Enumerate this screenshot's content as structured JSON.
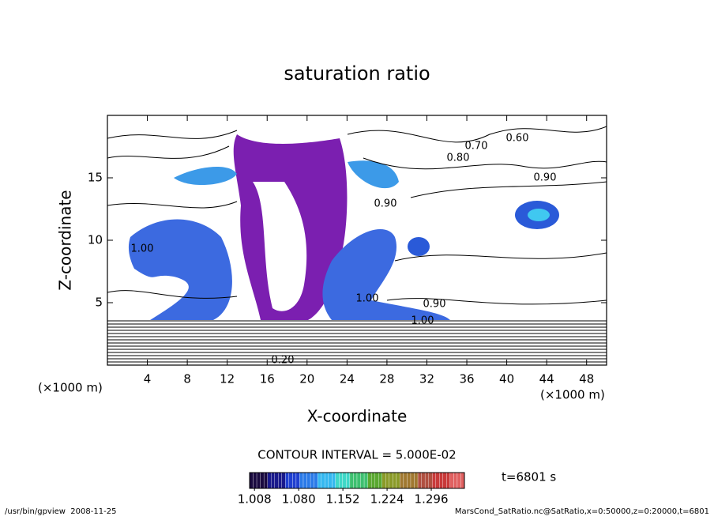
{
  "chart_data": {
    "type": "contour",
    "title": "saturation ratio",
    "x_label": "X-coordinate",
    "y_label": "Z-coordinate",
    "x_unit": "(×1000 m)",
    "y_unit": "(×1000 m)",
    "xlim": [
      0,
      50
    ],
    "ylim": [
      0,
      20
    ],
    "xticks": [
      4,
      8,
      12,
      16,
      20,
      24,
      28,
      32,
      36,
      40,
      44,
      48
    ],
    "yticks": [
      5,
      10,
      15
    ],
    "contour_interval": "CONTOUR INTERVAL = 5.000E-02",
    "contour_labels": [
      "0.80",
      "0.70",
      "0.60",
      "0.90",
      "1.00",
      "1.00",
      "0.90",
      "1.00",
      "0.90",
      "0.20"
    ],
    "colorbar": {
      "lim": [
        1.0,
        1.35
      ],
      "ticks": [
        {
          "value": 1.008,
          "label": "1.008"
        },
        {
          "value": 1.08,
          "label": "1.080"
        },
        {
          "value": 1.152,
          "label": "1.152"
        },
        {
          "value": 1.224,
          "label": "1.224"
        },
        {
          "value": 1.296,
          "label": "1.296"
        }
      ],
      "colors": [
        "#1a0a40",
        "#1a1a8c",
        "#1f3fd0",
        "#2a7ae8",
        "#35b8f0",
        "#3fd8c8",
        "#3ec070",
        "#5aa830",
        "#8a9a28",
        "#a07830",
        "#b05040",
        "#c83a3a",
        "#e06060"
      ]
    },
    "time": "t=6801 s"
  },
  "footer": {
    "left": "/usr/bin/gpview  2008-11-25",
    "right": "MarsCond_SatRatio.nc@SatRatio,x=0:50000,z=0:20000,t=6801"
  }
}
